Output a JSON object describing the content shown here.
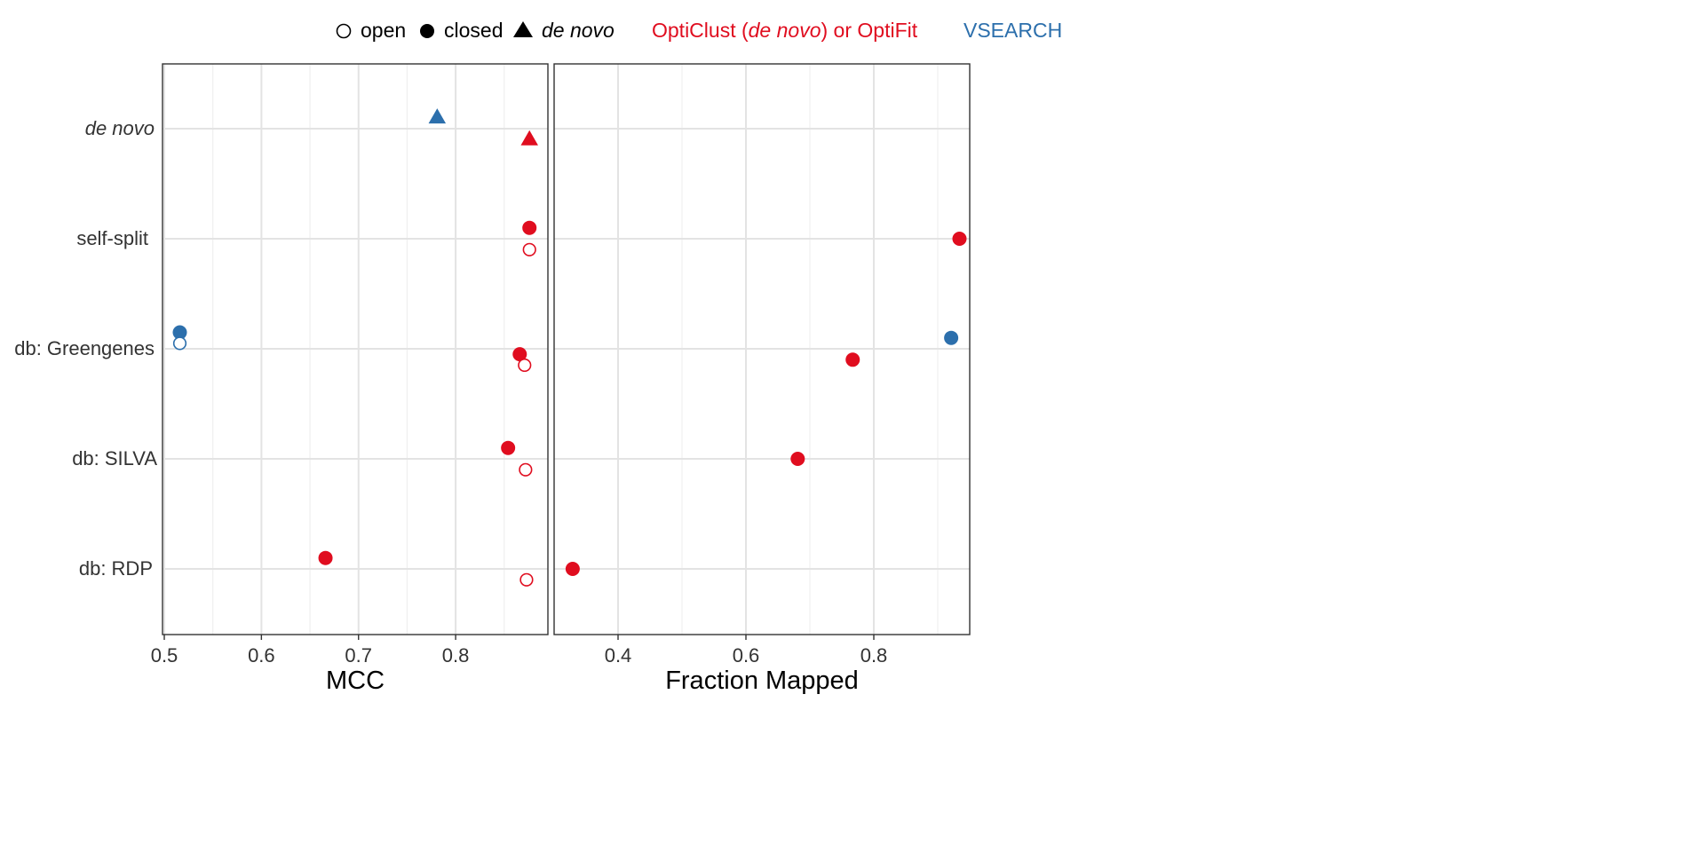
{
  "colors": {
    "opticlust": "#e00d1f",
    "vsearch": "#2c6fac",
    "legend_default": "#000000"
  },
  "legend": {
    "shape_items": [
      {
        "shape": "open-circle",
        "label": "open"
      },
      {
        "shape": "closed-circle",
        "label": "closed"
      },
      {
        "shape": "triangle",
        "label": "de novo"
      }
    ],
    "color_items": [
      {
        "label_parts": [
          "OptiClust (",
          "de novo",
          ") or OptiFit"
        ],
        "color_key": "opticlust"
      },
      {
        "label_parts": [
          "VSEARCH"
        ],
        "color_key": "vsearch"
      }
    ]
  },
  "chart_data": [
    {
      "type": "scatter",
      "xlabel": "MCC",
      "ylabel": "",
      "xlim": [
        0.5,
        0.895
      ],
      "xticks": [
        0.5,
        0.6,
        0.7,
        0.8
      ],
      "xtick_labels": [
        "0.5",
        "0.6",
        "0.7",
        "0.8"
      ],
      "minor_xticks": [
        0.55,
        0.65,
        0.75,
        0.85
      ],
      "categories": [
        "de novo",
        "self-split",
        "db: Greengenes",
        "db: SILVA",
        "db: RDP"
      ],
      "points": [
        {
          "category": "de novo",
          "offset": 1,
          "x": 0.781,
          "tool": "vsearch",
          "strategy": "de novo"
        },
        {
          "category": "de novo",
          "offset": -1,
          "x": 0.876,
          "tool": "opticlust",
          "strategy": "de novo"
        },
        {
          "category": "self-split",
          "offset": 1,
          "x": 0.876,
          "tool": "opticlust",
          "strategy": "closed"
        },
        {
          "category": "self-split",
          "offset": -1,
          "x": 0.876,
          "tool": "opticlust",
          "strategy": "open"
        },
        {
          "category": "db: Greengenes",
          "offset": 1.5,
          "x": 0.516,
          "tool": "vsearch",
          "strategy": "closed"
        },
        {
          "category": "db: Greengenes",
          "offset": 0.5,
          "x": 0.516,
          "tool": "vsearch",
          "strategy": "open"
        },
        {
          "category": "db: Greengenes",
          "offset": -0.5,
          "x": 0.866,
          "tool": "opticlust",
          "strategy": "closed"
        },
        {
          "category": "db: Greengenes",
          "offset": -1.5,
          "x": 0.871,
          "tool": "opticlust",
          "strategy": "open"
        },
        {
          "category": "db: SILVA",
          "offset": 1,
          "x": 0.854,
          "tool": "opticlust",
          "strategy": "closed"
        },
        {
          "category": "db: SILVA",
          "offset": -1,
          "x": 0.872,
          "tool": "opticlust",
          "strategy": "open"
        },
        {
          "category": "db: RDP",
          "offset": 1,
          "x": 0.666,
          "tool": "opticlust",
          "strategy": "closed"
        },
        {
          "category": "db: RDP",
          "offset": -1,
          "x": 0.873,
          "tool": "opticlust",
          "strategy": "open"
        }
      ]
    },
    {
      "type": "scatter",
      "xlabel": "Fraction Mapped",
      "ylabel": "",
      "xlim": [
        0.3,
        0.95
      ],
      "xticks": [
        0.4,
        0.6,
        0.8
      ],
      "xtick_labels": [
        "0.4",
        "0.6",
        "0.8"
      ],
      "minor_xticks": [
        0.3,
        0.5,
        0.7,
        0.9
      ],
      "categories": [
        "de novo",
        "self-split",
        "db: Greengenes",
        "db: SILVA",
        "db: RDP"
      ],
      "points": [
        {
          "category": "self-split",
          "offset": 0,
          "x": 0.934,
          "tool": "opticlust",
          "strategy": "closed"
        },
        {
          "category": "db: Greengenes",
          "offset": 1,
          "x": 0.921,
          "tool": "vsearch",
          "strategy": "closed"
        },
        {
          "category": "db: Greengenes",
          "offset": -1,
          "x": 0.767,
          "tool": "opticlust",
          "strategy": "closed"
        },
        {
          "category": "db: SILVA",
          "offset": 0,
          "x": 0.681,
          "tool": "opticlust",
          "strategy": "closed"
        },
        {
          "category": "db: RDP",
          "offset": 0,
          "x": 0.329,
          "tool": "opticlust",
          "strategy": "closed"
        }
      ]
    }
  ]
}
